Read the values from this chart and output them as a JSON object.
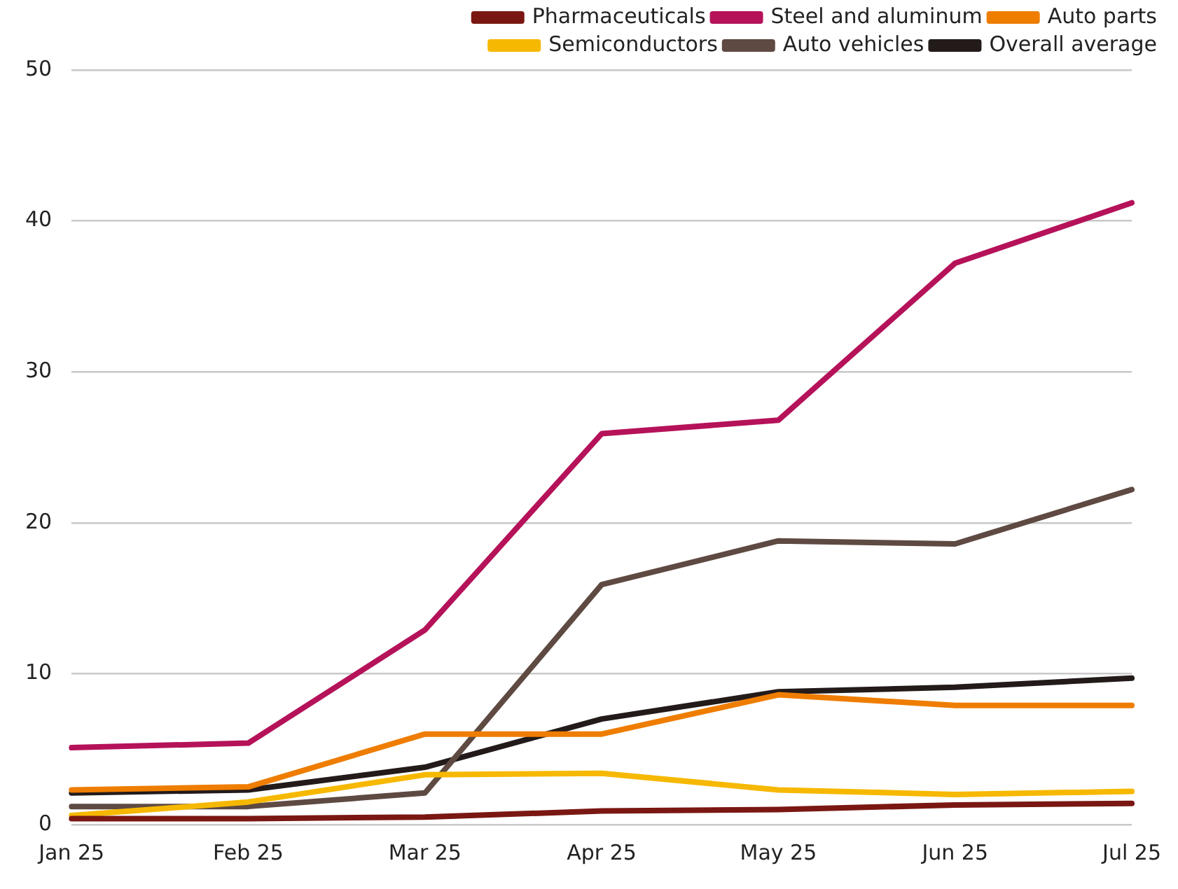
{
  "chart_data": {
    "type": "line",
    "categories": [
      "Jan 25",
      "Feb 25",
      "Mar 25",
      "Apr 25",
      "May 25",
      "Jun 25",
      "Jul 25"
    ],
    "series": [
      {
        "name": "Pharmaceuticals",
        "color": "#7a1712",
        "values": [
          0.4,
          0.4,
          0.5,
          0.9,
          1.0,
          1.3,
          1.4
        ]
      },
      {
        "name": "Steel and aluminum",
        "color": "#b5125a",
        "values": [
          5.1,
          5.4,
          12.9,
          25.9,
          26.8,
          37.2,
          41.2
        ]
      },
      {
        "name": "Auto parts",
        "color": "#ee7d00",
        "values": [
          2.3,
          2.5,
          6.0,
          6.0,
          8.6,
          7.9,
          7.9
        ]
      },
      {
        "name": "Semiconductors",
        "color": "#f6b800",
        "values": [
          0.6,
          1.5,
          3.3,
          3.4,
          2.3,
          2.0,
          2.2
        ]
      },
      {
        "name": "Auto vehicles",
        "color": "#5e4a42",
        "values": [
          1.2,
          1.2,
          2.1,
          15.9,
          18.8,
          18.6,
          22.2
        ]
      },
      {
        "name": "Overall average",
        "color": "#231a1a",
        "values": [
          2.1,
          2.3,
          3.8,
          7.0,
          8.8,
          9.1,
          9.7
        ]
      }
    ],
    "ylim": [
      0,
      50
    ],
    "yticks": [
      0,
      10,
      20,
      30,
      40,
      50
    ],
    "grid": "y",
    "legend": "top right",
    "marker": "none",
    "line_style": "solid"
  }
}
